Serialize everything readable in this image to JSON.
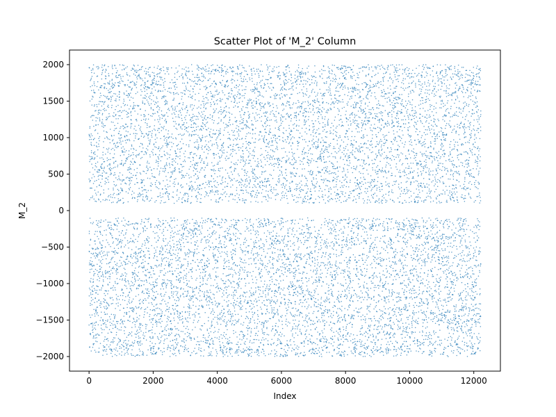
{
  "chart_data": {
    "type": "scatter",
    "title": "Scatter Plot of 'M_2' Column",
    "xlabel": "Index",
    "ylabel": "M_2",
    "xlim": [
      -610,
      12830
    ],
    "ylim": [
      -2200,
      2200
    ],
    "xticks": [
      0,
      2000,
      4000,
      6000,
      8000,
      10000,
      12000
    ],
    "yticks": [
      -2000,
      -1500,
      -1000,
      -500,
      0,
      500,
      1000,
      1500,
      2000
    ],
    "grid": false,
    "marker_color": "#1f77b4",
    "series": [
      {
        "name": "",
        "n_points": 12220,
        "x_range": [
          0,
          12219
        ],
        "y_range": [
          -2000,
          2000
        ],
        "gap_excluded": [
          -100,
          100
        ],
        "distribution": "uniform random within |M_2| between 100 and 2000 (approximate visual description)",
        "points": [
          [
            120,
            1930
          ],
          [
            410,
            640
          ],
          [
            860,
            -1520
          ],
          [
            1330,
            220
          ],
          [
            1770,
            -820
          ],
          [
            2200,
            1410
          ],
          [
            2690,
            -1890
          ],
          [
            3150,
            960
          ],
          [
            3620,
            -360
          ],
          [
            4080,
            1760
          ],
          [
            4540,
            -1230
          ],
          [
            5010,
            320
          ],
          [
            5460,
            -1770
          ],
          [
            5930,
            1120
          ],
          [
            6390,
            -540
          ],
          [
            6850,
            1980
          ],
          [
            7310,
            -980
          ],
          [
            7770,
            470
          ],
          [
            8240,
            -1960
          ],
          [
            8700,
            1530
          ],
          [
            9160,
            -210
          ],
          [
            9630,
            840
          ],
          [
            10090,
            -1400
          ],
          [
            10550,
            1880
          ],
          [
            11020,
            -700
          ],
          [
            11480,
            150
          ],
          [
            11950,
            -1840
          ],
          [
            12210,
            1290
          ]
        ]
      }
    ]
  }
}
